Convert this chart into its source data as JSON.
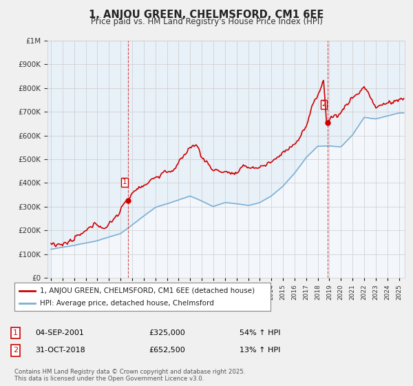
{
  "title": "1, ANJOU GREEN, CHELMSFORD, CM1 6EE",
  "subtitle": "Price paid vs. HM Land Registry's House Price Index (HPI)",
  "legend_line1": "1, ANJOU GREEN, CHELMSFORD, CM1 6EE (detached house)",
  "legend_line2": "HPI: Average price, detached house, Chelmsford",
  "sale1_date": "04-SEP-2001",
  "sale1_year": 2001.67,
  "sale1_price": 325000,
  "sale1_pct": "54% ↑ HPI",
  "sale2_date": "31-OCT-2018",
  "sale2_year": 2018.83,
  "sale2_price": 652500,
  "sale2_pct": "13% ↑ HPI",
  "footnote": "Contains HM Land Registry data © Crown copyright and database right 2025.\nThis data is licensed under the Open Government Licence v3.0.",
  "red_color": "#cc0000",
  "blue_color": "#7bafd4",
  "plot_fill_color": "#e8f0f8",
  "background_color": "#f0f0f0",
  "plot_bg_color": "#ffffff",
  "ylim": [
    0,
    1000000
  ],
  "xlim_start": 1994.7,
  "xlim_end": 2025.5
}
